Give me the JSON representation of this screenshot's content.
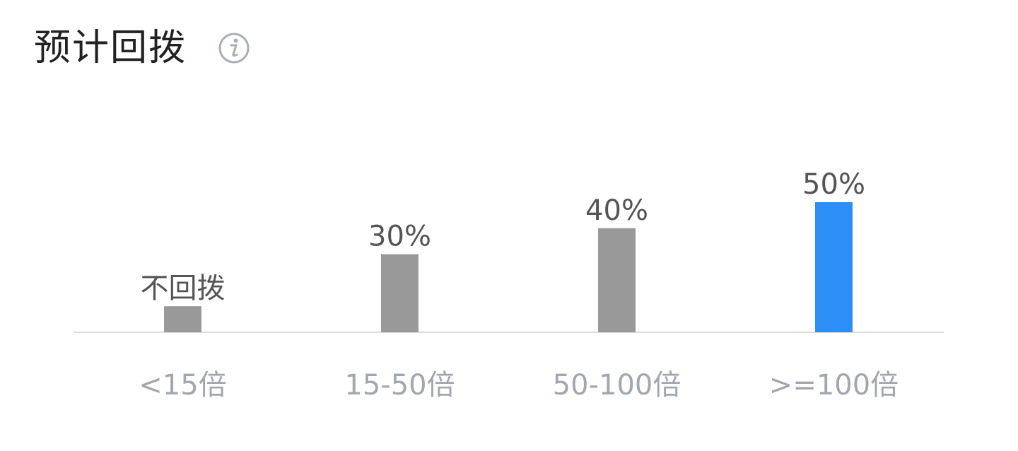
{
  "header": {
    "title": "预计回拨",
    "info_icon": "info-circle-icon"
  },
  "colors": {
    "bar_default": "#999999",
    "bar_highlight": "#2e8ef8",
    "axis": "#dcdcdc",
    "label": "#555555",
    "category": "#a2a6ae"
  },
  "chart_data": {
    "type": "bar",
    "categories": [
      "<15倍",
      "15-50倍",
      "50-100倍",
      ">=100倍"
    ],
    "values": [
      10,
      30,
      40,
      50
    ],
    "data_labels": [
      "不回拨",
      "30%",
      "40%",
      "50%"
    ],
    "highlight_index": 3,
    "ylim": [
      0,
      50
    ],
    "grid": false,
    "legend": "none"
  }
}
